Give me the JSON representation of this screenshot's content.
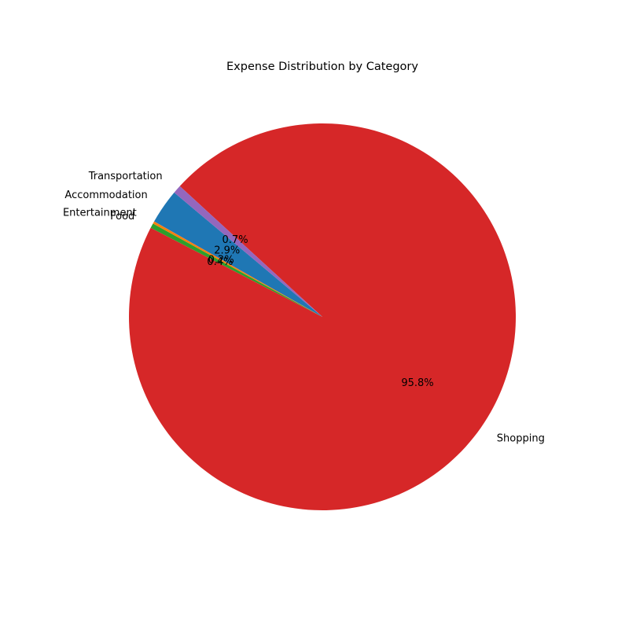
{
  "chart_data": {
    "type": "pie",
    "title": "Expense Distribution by Category",
    "slices": [
      {
        "label": "Accommodation",
        "value": 2.9,
        "pct_label": "2.9%",
        "color": "#1f77b4"
      },
      {
        "label": "Entertainment",
        "value": 0.2,
        "pct_label": "0.2%",
        "color": "#ff7f0e"
      },
      {
        "label": "Food",
        "value": 0.4,
        "pct_label": "0.4%",
        "color": "#2ca02c"
      },
      {
        "label": "Shopping",
        "value": 95.8,
        "pct_label": "95.8%",
        "color": "#d62728"
      },
      {
        "label": "Transportation",
        "value": 0.7,
        "pct_label": "0.7%",
        "color": "#9467bd"
      }
    ],
    "start_angle_deg": 140,
    "direction": "counterclockwise",
    "legend": "none"
  }
}
